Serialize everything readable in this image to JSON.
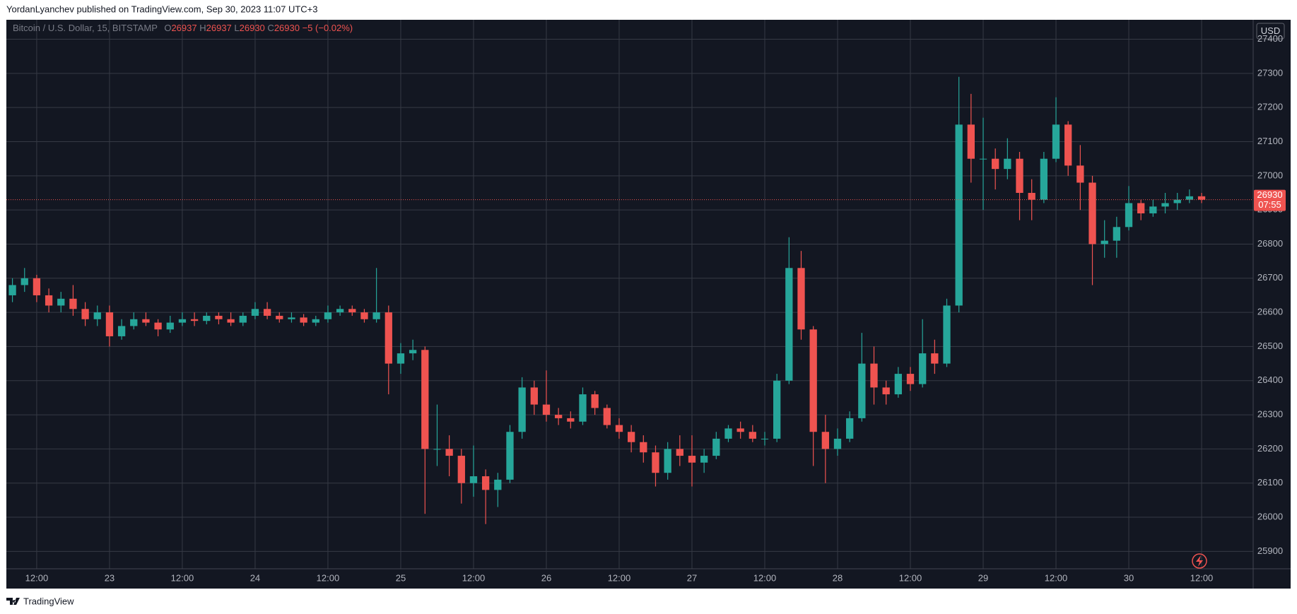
{
  "header": "YordanLyanchev published on TradingView.com, Sep 30, 2023 11:07 UTC+3",
  "footer": "TradingView",
  "chart_data": {
    "type": "candlestick",
    "title": "Bitcoin / U.S. Dollar, 15, BITSTAMP",
    "ohlc_letters": [
      "O",
      "H",
      "L",
      "C"
    ],
    "ohlc_values": [
      26937,
      26937,
      26930,
      26930
    ],
    "change": "−5 (−0.02%)",
    "currency": "USD",
    "last_price": 26930,
    "countdown": "07:55",
    "up_color": "#26a69a",
    "down_color": "#ef5350",
    "grid": true,
    "x": [
      "Sep 22 08:00",
      "Sep 22 10:00",
      "Sep 22 12:00",
      "Sep 22 14:00",
      "Sep 22 16:00",
      "Sep 22 18:00",
      "Sep 22 20:00",
      "Sep 22 22:00",
      "Sep 23 00:00",
      "Sep 23 02:00",
      "Sep 23 04:00",
      "Sep 23 06:00",
      "Sep 23 08:00",
      "Sep 23 10:00",
      "Sep 23 12:00",
      "Sep 23 14:00",
      "Sep 23 16:00",
      "Sep 23 18:00",
      "Sep 23 20:00",
      "Sep 23 22:00",
      "Sep 24 00:00",
      "Sep 24 02:00",
      "Sep 24 04:00",
      "Sep 24 06:00",
      "Sep 24 08:00",
      "Sep 24 10:00",
      "Sep 24 12:00",
      "Sep 24 14:00",
      "Sep 24 16:00",
      "Sep 24 18:00",
      "Sep 24 20:00",
      "Sep 24 22:00",
      "Sep 25 00:00",
      "Sep 25 02:00",
      "Sep 25 04:00",
      "Sep 25 06:00",
      "Sep 25 08:00",
      "Sep 25 10:00",
      "Sep 25 12:00",
      "Sep 25 14:00",
      "Sep 25 16:00",
      "Sep 25 18:00",
      "Sep 25 20:00",
      "Sep 25 22:00",
      "Sep 26 00:00",
      "Sep 26 02:00",
      "Sep 26 04:00",
      "Sep 26 06:00",
      "Sep 26 08:00",
      "Sep 26 10:00",
      "Sep 26 12:00",
      "Sep 26 14:00",
      "Sep 26 16:00",
      "Sep 26 18:00",
      "Sep 26 20:00",
      "Sep 26 22:00",
      "Sep 27 00:00",
      "Sep 27 02:00",
      "Sep 27 04:00",
      "Sep 27 06:00",
      "Sep 27 08:00",
      "Sep 27 10:00",
      "Sep 27 12:00",
      "Sep 27 14:00",
      "Sep 27 16:00",
      "Sep 27 18:00",
      "Sep 27 20:00",
      "Sep 27 22:00",
      "Sep 28 00:00",
      "Sep 28 02:00",
      "Sep 28 04:00",
      "Sep 28 06:00",
      "Sep 28 08:00",
      "Sep 28 10:00",
      "Sep 28 12:00",
      "Sep 28 14:00",
      "Sep 28 16:00",
      "Sep 28 18:00",
      "Sep 28 20:00",
      "Sep 28 22:00",
      "Sep 29 00:00",
      "Sep 29 02:00",
      "Sep 29 04:00",
      "Sep 29 06:00",
      "Sep 29 08:00",
      "Sep 29 10:00",
      "Sep 29 12:00",
      "Sep 29 14:00",
      "Sep 29 16:00",
      "Sep 29 18:00",
      "Sep 29 20:00",
      "Sep 29 22:00",
      "Sep 30 00:00",
      "Sep 30 02:00",
      "Sep 30 04:00",
      "Sep 30 06:00",
      "Sep 30 08:00",
      "Sep 30 10:00",
      "Sep 30 12:00"
    ],
    "open": [
      26650,
      26680,
      26700,
      26650,
      26620,
      26640,
      26610,
      26580,
      26600,
      26530,
      26560,
      26580,
      26570,
      26550,
      26570,
      26580,
      26575,
      26590,
      26580,
      26570,
      26590,
      26610,
      26590,
      26580,
      26585,
      26570,
      26580,
      26600,
      26610,
      26600,
      26580,
      26600,
      26450,
      26480,
      26490,
      26200,
      26200,
      26180,
      26100,
      26120,
      26080,
      26110,
      26250,
      26380,
      26330,
      26300,
      26290,
      26280,
      26360,
      26320,
      26270,
      26250,
      26220,
      26190,
      26130,
      26200,
      26180,
      26160,
      26180,
      26230,
      26260,
      26250,
      26230,
      26230,
      26400,
      26730,
      26550,
      26250,
      26200,
      26230,
      26290,
      26450,
      26380,
      26360,
      26420,
      26390,
      26480,
      26450,
      26620,
      27150,
      27050,
      27050,
      27020,
      27050,
      26950,
      26930,
      27050,
      27150,
      27030,
      26980,
      26800,
      26810,
      26850,
      26920,
      26890,
      26910,
      26920,
      26930,
      26940
    ],
    "high": [
      26700,
      26730,
      26710,
      26670,
      26660,
      26680,
      26630,
      26620,
      26620,
      26580,
      26600,
      26600,
      26580,
      26590,
      26600,
      26600,
      26600,
      26600,
      26600,
      26600,
      26630,
      26630,
      26600,
      26600,
      26595,
      26590,
      26620,
      26620,
      26620,
      26610,
      26730,
      26620,
      26510,
      26520,
      26500,
      26330,
      26240,
      26200,
      26210,
      26140,
      26130,
      26270,
      26410,
      26400,
      26430,
      26320,
      26310,
      26380,
      26370,
      26330,
      26290,
      26270,
      26240,
      26210,
      26220,
      26240,
      26240,
      26200,
      26250,
      26270,
      26280,
      26270,
      26250,
      26420,
      26820,
      26780,
      26560,
      26300,
      26260,
      26310,
      26540,
      26500,
      26400,
      26440,
      26440,
      26580,
      26520,
      26640,
      27290,
      27240,
      27170,
      27080,
      27110,
      27070,
      26990,
      27070,
      27230,
      27160,
      27090,
      27000,
      26870,
      26880,
      26970,
      26930,
      26930,
      26950,
      26950,
      26960,
      26950
    ],
    "low": [
      26630,
      26660,
      26630,
      26600,
      26600,
      26590,
      26560,
      26560,
      26500,
      26520,
      26550,
      26560,
      26530,
      26540,
      26560,
      26560,
      26565,
      26565,
      26560,
      26560,
      26580,
      26580,
      26570,
      26570,
      26560,
      26560,
      26570,
      26590,
      26590,
      26570,
      26570,
      26360,
      26420,
      26460,
      26010,
      26150,
      26120,
      26040,
      26060,
      25980,
      26030,
      26100,
      26230,
      26300,
      26280,
      26270,
      26260,
      26270,
      26300,
      26260,
      26230,
      26190,
      26160,
      26090,
      26110,
      26150,
      26090,
      26130,
      26170,
      26220,
      26230,
      26220,
      26210,
      26220,
      26390,
      26520,
      26150,
      26100,
      26180,
      26220,
      26280,
      26330,
      26330,
      26350,
      26370,
      26380,
      26420,
      26440,
      26600,
      26980,
      26900,
      26960,
      26990,
      26870,
      26870,
      26920,
      27040,
      27000,
      26900,
      26680,
      26760,
      26760,
      26840,
      26870,
      26880,
      26890,
      26900,
      26920,
      26920
    ],
    "close": [
      26680,
      26700,
      26650,
      26620,
      26640,
      26610,
      26580,
      26600,
      26530,
      26560,
      26580,
      26570,
      26550,
      26570,
      26580,
      26575,
      26590,
      26580,
      26570,
      26590,
      26610,
      26590,
      26580,
      26585,
      26570,
      26580,
      26600,
      26610,
      26600,
      26580,
      26600,
      26450,
      26480,
      26490,
      26200,
      26200,
      26180,
      26100,
      26120,
      26080,
      26110,
      26250,
      26380,
      26330,
      26300,
      26290,
      26280,
      26360,
      26320,
      26270,
      26250,
      26220,
      26190,
      26130,
      26200,
      26180,
      26160,
      26180,
      26230,
      26260,
      26250,
      26230,
      26230,
      26400,
      26730,
      26550,
      26250,
      26200,
      26230,
      26290,
      26450,
      26380,
      26360,
      26420,
      26390,
      26480,
      26450,
      26620,
      27150,
      27050,
      27050,
      27020,
      27050,
      26950,
      26930,
      27050,
      27150,
      27030,
      26980,
      26800,
      26810,
      26850,
      26920,
      26890,
      26910,
      26920,
      26930,
      26940,
      26930
    ],
    "xlim": [
      "Sep 22 07:00",
      "Sep 30 20:30"
    ],
    "xticks": [
      {
        "value": "Sep 22 12:00",
        "label": "12:00"
      },
      {
        "value": "Sep 23 00:00",
        "label": "23"
      },
      {
        "value": "Sep 23 12:00",
        "label": "12:00"
      },
      {
        "value": "Sep 24 00:00",
        "label": "24"
      },
      {
        "value": "Sep 24 12:00",
        "label": "12:00"
      },
      {
        "value": "Sep 25 00:00",
        "label": "25"
      },
      {
        "value": "Sep 25 12:00",
        "label": "12:00"
      },
      {
        "value": "Sep 26 00:00",
        "label": "26"
      },
      {
        "value": "Sep 26 12:00",
        "label": "12:00"
      },
      {
        "value": "Sep 27 00:00",
        "label": "27"
      },
      {
        "value": "Sep 27 12:00",
        "label": "12:00"
      },
      {
        "value": "Sep 28 00:00",
        "label": "28"
      },
      {
        "value": "Sep 28 12:00",
        "label": "12:00"
      },
      {
        "value": "Sep 29 00:00",
        "label": "29"
      },
      {
        "value": "Sep 29 12:00",
        "label": "12:00"
      },
      {
        "value": "Sep 30 00:00",
        "label": "30"
      },
      {
        "value": "Sep 30 12:00",
        "label": "12:00"
      }
    ],
    "ylim": [
      25849,
      27457
    ],
    "yticks": [
      25900,
      26000,
      26100,
      26200,
      26300,
      26400,
      26500,
      26600,
      26700,
      26800,
      26900,
      27000,
      27100,
      27200,
      27300,
      27400
    ]
  }
}
